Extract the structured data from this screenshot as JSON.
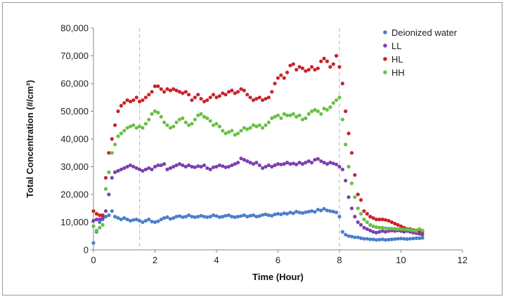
{
  "chart_data": {
    "type": "scatter",
    "xlabel": "Time (Hour)",
    "ylabel": "Total Concentration (#/cm³)",
    "xlim": [
      0,
      12
    ],
    "ylim": [
      0,
      80000
    ],
    "xticks": [
      "0",
      "2",
      "4",
      "6",
      "8",
      "10",
      "12"
    ],
    "yticks": [
      "0",
      "10,000",
      "20,000",
      "30,000",
      "40,000",
      "50,000",
      "60,000",
      "70,000",
      "80,000"
    ],
    "reference_lines_x": [
      1.5,
      8
    ],
    "legend_position": "top-right",
    "grid": false,
    "series": [
      {
        "name": "Deionized water",
        "color": "#4a7fc9",
        "x": [
          0,
          0.1,
          0.2,
          0.3,
          0.4,
          0.5,
          0.6,
          0.7,
          0.8,
          0.9,
          1.0,
          1.1,
          1.2,
          1.3,
          1.4,
          1.5,
          1.6,
          1.7,
          1.8,
          1.9,
          2.0,
          2.1,
          2.2,
          2.3,
          2.4,
          2.5,
          2.6,
          2.7,
          2.8,
          2.9,
          3.0,
          3.1,
          3.2,
          3.3,
          3.4,
          3.5,
          3.6,
          3.7,
          3.8,
          3.9,
          4.0,
          4.1,
          4.2,
          4.3,
          4.4,
          4.5,
          4.6,
          4.7,
          4.8,
          4.9,
          5.0,
          5.1,
          5.2,
          5.3,
          5.4,
          5.5,
          5.6,
          5.7,
          5.8,
          5.9,
          6.0,
          6.1,
          6.2,
          6.3,
          6.4,
          6.5,
          6.6,
          6.7,
          6.8,
          6.9,
          7.0,
          7.1,
          7.2,
          7.3,
          7.4,
          7.5,
          7.6,
          7.7,
          7.8,
          7.9,
          8.0,
          8.1,
          8.2,
          8.3,
          8.4,
          8.5,
          8.6,
          8.7,
          8.8,
          8.9,
          9.0,
          9.1,
          9.2,
          9.3,
          9.4,
          9.5,
          9.6,
          9.7,
          9.8,
          9.9,
          10.0,
          10.1,
          10.2,
          10.3,
          10.4,
          10.5,
          10.6,
          10.7
        ],
        "values": [
          2500,
          6500,
          10000,
          11000,
          12000,
          12500,
          14000,
          12000,
          11500,
          11000,
          11500,
          11000,
          10500,
          10800,
          11000,
          10500,
          10000,
          10500,
          11000,
          10200,
          10000,
          10300,
          11000,
          11500,
          11800,
          11200,
          11500,
          12000,
          12200,
          11800,
          12000,
          12500,
          12000,
          11800,
          12000,
          12300,
          12000,
          11800,
          12000,
          12500,
          12200,
          11800,
          12000,
          12300,
          12500,
          12000,
          11800,
          12000,
          12200,
          12500,
          12000,
          12300,
          12500,
          12000,
          12200,
          12600,
          12800,
          12500,
          12300,
          12800,
          13000,
          12800,
          13200,
          13000,
          13500,
          13200,
          13800,
          13500,
          13300,
          13600,
          13800,
          14000,
          13700,
          14500,
          14200,
          14800,
          14200,
          14000,
          13800,
          13500,
          12000,
          6500,
          5500,
          5000,
          4800,
          4500,
          4500,
          4200,
          4000,
          4000,
          3800,
          3800,
          3600,
          3700,
          3800,
          3600,
          3700,
          3800,
          3900,
          4000,
          4100,
          4000,
          3900,
          4000,
          4100,
          4200,
          4200,
          4300
        ]
      },
      {
        "name": "LL",
        "color": "#7d3fb0",
        "x": [
          0,
          0.1,
          0.2,
          0.3,
          0.4,
          0.5,
          0.6,
          0.7,
          0.8,
          0.9,
          1.0,
          1.1,
          1.2,
          1.3,
          1.4,
          1.5,
          1.6,
          1.7,
          1.8,
          1.9,
          2.0,
          2.1,
          2.2,
          2.3,
          2.4,
          2.5,
          2.6,
          2.7,
          2.8,
          2.9,
          3.0,
          3.1,
          3.2,
          3.3,
          3.4,
          3.5,
          3.6,
          3.7,
          3.8,
          3.9,
          4.0,
          4.1,
          4.2,
          4.3,
          4.4,
          4.5,
          4.6,
          4.7,
          4.8,
          4.9,
          5.0,
          5.1,
          5.2,
          5.3,
          5.4,
          5.5,
          5.6,
          5.7,
          5.8,
          5.9,
          6.0,
          6.1,
          6.2,
          6.3,
          6.4,
          6.5,
          6.6,
          6.7,
          6.8,
          6.9,
          7.0,
          7.1,
          7.2,
          7.3,
          7.4,
          7.5,
          7.6,
          7.7,
          7.8,
          7.9,
          8.0,
          8.1,
          8.2,
          8.3,
          8.4,
          8.5,
          8.6,
          8.7,
          8.8,
          8.9,
          9.0,
          9.1,
          9.2,
          9.3,
          9.4,
          9.5,
          9.6,
          9.7,
          9.8,
          9.9,
          10.0,
          10.1,
          10.2,
          10.3,
          10.4,
          10.5,
          10.6,
          10.7
        ],
        "values": [
          10500,
          11000,
          11000,
          11500,
          14000,
          20000,
          26000,
          28000,
          28500,
          29000,
          29500,
          30000,
          30500,
          30000,
          29500,
          29000,
          28500,
          29000,
          29500,
          29000,
          30000,
          30500,
          30500,
          31000,
          29000,
          29500,
          30000,
          30500,
          31000,
          30500,
          30000,
          30500,
          30000,
          29800,
          30200,
          30000,
          30500,
          29500,
          29000,
          29800,
          30000,
          30500,
          30200,
          29800,
          30000,
          30500,
          31000,
          31500,
          33000,
          32500,
          32000,
          31500,
          31000,
          31500,
          30500,
          29500,
          30000,
          30500,
          30000,
          30500,
          31000,
          30800,
          31000,
          31500,
          31000,
          31200,
          30800,
          31500,
          31000,
          31500,
          32000,
          31500,
          32500,
          32800,
          32000,
          31500,
          31000,
          31500,
          31200,
          30800,
          30000,
          29000,
          25000,
          19000,
          15000,
          12000,
          10000,
          9000,
          8000,
          7500,
          7000,
          6500,
          6200,
          6500,
          6800,
          6500,
          6800,
          7000,
          6800,
          7000,
          6800,
          6500,
          6800,
          6500,
          6200,
          6000,
          5800,
          5500
        ]
      },
      {
        "name": "HL",
        "color": "#c8232a",
        "x": [
          0,
          0.1,
          0.2,
          0.3,
          0.4,
          0.5,
          0.6,
          0.7,
          0.8,
          0.9,
          1.0,
          1.1,
          1.2,
          1.3,
          1.4,
          1.5,
          1.6,
          1.7,
          1.8,
          1.9,
          2.0,
          2.1,
          2.2,
          2.3,
          2.4,
          2.5,
          2.6,
          2.7,
          2.8,
          2.9,
          3.0,
          3.1,
          3.2,
          3.3,
          3.4,
          3.5,
          3.6,
          3.7,
          3.8,
          3.9,
          4.0,
          4.1,
          4.2,
          4.3,
          4.4,
          4.5,
          4.6,
          4.7,
          4.8,
          4.9,
          5.0,
          5.1,
          5.2,
          5.3,
          5.4,
          5.5,
          5.6,
          5.7,
          5.8,
          5.9,
          6.0,
          6.1,
          6.2,
          6.3,
          6.4,
          6.5,
          6.6,
          6.7,
          6.8,
          6.9,
          7.0,
          7.1,
          7.2,
          7.3,
          7.4,
          7.5,
          7.6,
          7.7,
          7.8,
          7.9,
          8.0,
          8.1,
          8.2,
          8.3,
          8.4,
          8.5,
          8.6,
          8.7,
          8.8,
          8.9,
          9.0,
          9.1,
          9.2,
          9.3,
          9.4,
          9.5,
          9.6,
          9.7,
          9.8,
          9.9,
          10.0,
          10.1,
          10.2,
          10.3,
          10.4,
          10.5,
          10.6,
          10.7
        ],
        "values": [
          14000,
          13000,
          12500,
          12500,
          26000,
          35000,
          40000,
          45000,
          50000,
          52000,
          53000,
          54000,
          53500,
          54000,
          55000,
          53500,
          54000,
          55000,
          56000,
          57000,
          59000,
          59000,
          58000,
          57000,
          58000,
          57500,
          58000,
          57500,
          57000,
          56500,
          57000,
          56000,
          54000,
          55000,
          56000,
          54500,
          53500,
          54000,
          55000,
          56000,
          55000,
          55500,
          56500,
          56000,
          57000,
          57500,
          56500,
          57000,
          58000,
          57500,
          56000,
          55000,
          54000,
          54500,
          55000,
          54000,
          54500,
          55000,
          57000,
          60000,
          62000,
          63000,
          62000,
          64000,
          66500,
          67000,
          65000,
          66000,
          65500,
          64500,
          65000,
          66000,
          65000,
          65500,
          68000,
          69000,
          68000,
          66000,
          67000,
          70000,
          66000,
          60000,
          50000,
          42000,
          35000,
          27000,
          20000,
          18000,
          14000,
          13000,
          12000,
          11500,
          11000,
          11000,
          11000,
          10800,
          10500,
          10000,
          9500,
          9000,
          8500,
          8000,
          7500,
          7500,
          7200,
          7000,
          6800,
          6500
        ]
      },
      {
        "name": "HH",
        "color": "#6abf45",
        "x": [
          0,
          0.1,
          0.2,
          0.3,
          0.4,
          0.5,
          0.6,
          0.7,
          0.8,
          0.9,
          1.0,
          1.1,
          1.2,
          1.3,
          1.4,
          1.5,
          1.6,
          1.7,
          1.8,
          1.9,
          2.0,
          2.1,
          2.2,
          2.3,
          2.4,
          2.5,
          2.6,
          2.7,
          2.8,
          2.9,
          3.0,
          3.1,
          3.2,
          3.3,
          3.4,
          3.5,
          3.6,
          3.7,
          3.8,
          3.9,
          4.0,
          4.1,
          4.2,
          4.3,
          4.4,
          4.5,
          4.6,
          4.7,
          4.8,
          4.9,
          5.0,
          5.1,
          5.2,
          5.3,
          5.4,
          5.5,
          5.6,
          5.7,
          5.8,
          5.9,
          6.0,
          6.1,
          6.2,
          6.3,
          6.4,
          6.5,
          6.6,
          6.7,
          6.8,
          6.9,
          7.0,
          7.1,
          7.2,
          7.3,
          7.4,
          7.5,
          7.6,
          7.7,
          7.8,
          7.9,
          8.0,
          8.1,
          8.2,
          8.3,
          8.4,
          8.5,
          8.6,
          8.7,
          8.8,
          8.9,
          9.0,
          9.1,
          9.2,
          9.3,
          9.4,
          9.5,
          9.6,
          9.7,
          9.8,
          9.9,
          10.0,
          10.1,
          10.2,
          10.3,
          10.4,
          10.5,
          10.6,
          10.7
        ],
        "values": [
          8500,
          7000,
          8000,
          9000,
          22000,
          28000,
          35000,
          38000,
          41000,
          42000,
          43000,
          44000,
          44500,
          45000,
          44000,
          44500,
          44000,
          45500,
          47000,
          49000,
          50000,
          49500,
          48000,
          46000,
          45000,
          44000,
          44500,
          46000,
          47000,
          47500,
          46000,
          45000,
          45500,
          47000,
          48500,
          49000,
          48000,
          47500,
          46500,
          45000,
          45500,
          44500,
          43000,
          42000,
          42500,
          43000,
          41500,
          42000,
          43000,
          44000,
          43500,
          44000,
          45000,
          44500,
          45000,
          44000,
          45000,
          46000,
          47500,
          48000,
          48500,
          47500,
          49000,
          48500,
          48500,
          49000,
          48000,
          48500,
          47000,
          47500,
          49000,
          50000,
          50500,
          50000,
          49000,
          51000,
          50500,
          51500,
          53000,
          54000,
          55000,
          47000,
          38000,
          30000,
          24000,
          19000,
          15000,
          13000,
          11000,
          10000,
          9000,
          8500,
          8200,
          8000,
          8000,
          7800,
          7700,
          7700,
          7600,
          7500,
          7500,
          7400,
          7300,
          7200,
          7000,
          6800,
          7500,
          7000
        ]
      }
    ]
  }
}
